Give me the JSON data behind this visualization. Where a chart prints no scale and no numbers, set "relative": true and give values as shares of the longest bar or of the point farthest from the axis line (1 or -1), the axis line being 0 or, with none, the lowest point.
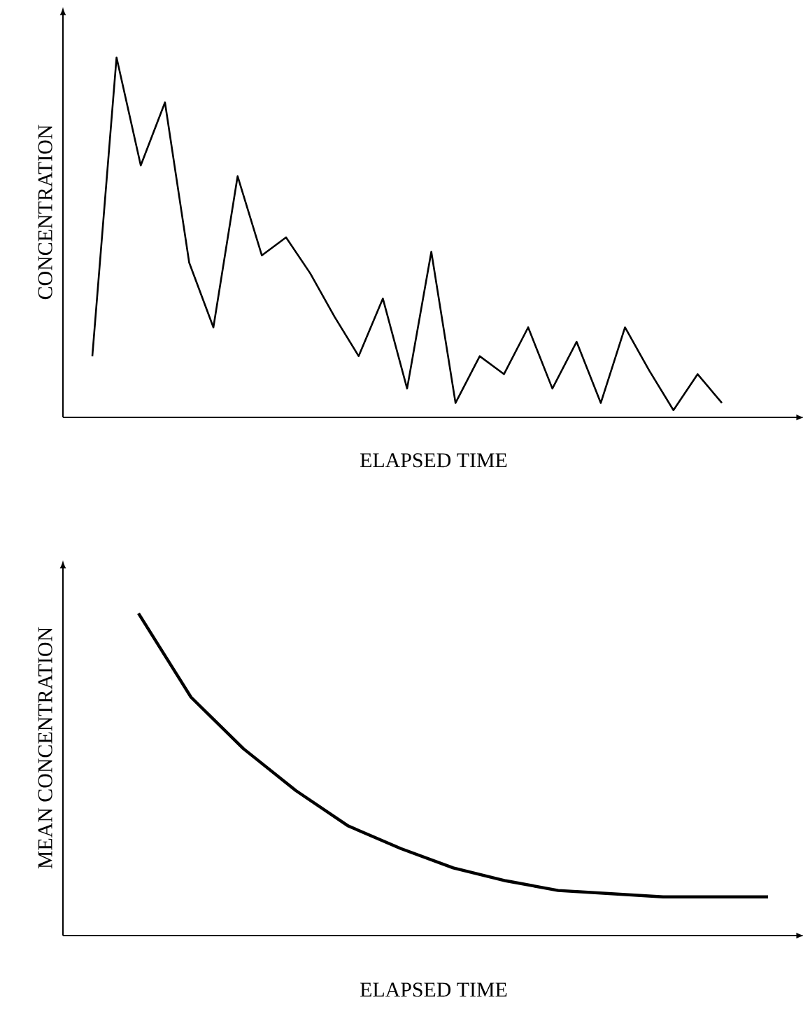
{
  "chart_data": [
    {
      "type": "line",
      "relative": true,
      "xlabel": "ELAPSED TIME",
      "ylabel": "CONCENTRATION",
      "categories": [
        null,
        null,
        null,
        null,
        null,
        null,
        null,
        null,
        null,
        null,
        null,
        null,
        null,
        null,
        null,
        null,
        null,
        null,
        null,
        null,
        null,
        null,
        null,
        null,
        null,
        null,
        null
      ],
      "series": [
        {
          "color": "#000000",
          "values": [
            0.17,
            1,
            0.7,
            0.875,
            0.43,
            0.25,
            0.67,
            0.45,
            0.5,
            0.4,
            0.28,
            0.17,
            0.33,
            0.08,
            0.46,
            0.04,
            0.17,
            0.12,
            0.25,
            0.08,
            0.21,
            0.04,
            0.25,
            0.13,
            0.02,
            0.12,
            0.04
          ]
        }
      ]
    },
    {
      "type": "line",
      "relative": true,
      "xlabel": "ELAPSED TIME",
      "ylabel": "MEAN CONCENTRATION",
      "categories": [
        null,
        null,
        null,
        null,
        null,
        null,
        null,
        null,
        null,
        null,
        null,
        null,
        null
      ],
      "series": [
        {
          "color": "#000000",
          "values": [
            1,
            0.74,
            0.58,
            0.45,
            0.34,
            0.27,
            0.21,
            0.17,
            0.14,
            0.13,
            0.12,
            0.12,
            0.12
          ]
        }
      ]
    }
  ]
}
